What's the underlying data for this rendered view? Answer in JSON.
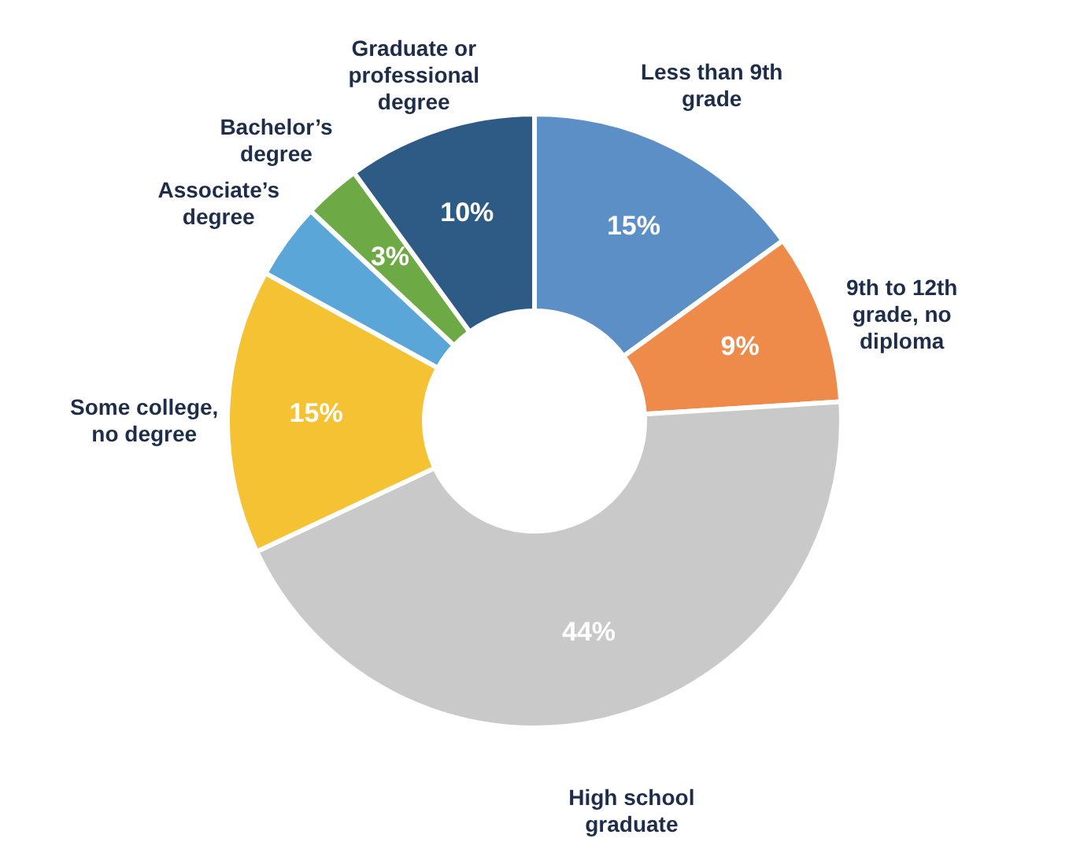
{
  "chart_data": {
    "type": "donut",
    "categories": [
      "Less than 9th grade",
      "9th to 12th grade, no diploma",
      "High school graduate",
      "Some college, no degree",
      "Associate’s degree",
      "Bachelor’s degree",
      "Graduate or professional degree"
    ],
    "values": [
      15,
      9,
      44,
      15,
      4,
      3,
      10
    ],
    "value_labels": [
      "15%",
      "9%",
      "44%",
      "15%",
      null,
      "3%",
      "10%"
    ],
    "colors": [
      "#5b8fc6",
      "#ee8a4a",
      "#c9c9c9",
      "#f4c232",
      "#5ba6d8",
      "#6daa45",
      "#2d5b86"
    ]
  }
}
